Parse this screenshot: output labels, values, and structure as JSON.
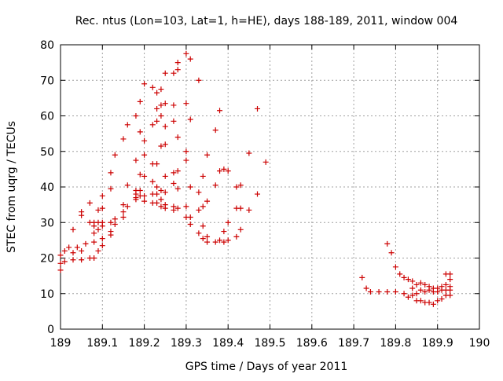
{
  "chart_data": {
    "type": "scatter",
    "title": "Rec. ntus (Lon=103, Lat=1, h=HE), days 188-189, 2011, window 004",
    "xlabel": "GPS time / Days of year 2011",
    "ylabel": "STEC from uqrg / TECUs",
    "xlim": [
      189,
      190
    ],
    "ylim": [
      0,
      80
    ],
    "xticks": [
      "189",
      "189.1",
      "189.2",
      "189.3",
      "189.4",
      "189.5",
      "189.6",
      "189.7",
      "189.8",
      "189.9",
      "190"
    ],
    "yticks": [
      "0",
      "10",
      "20",
      "30",
      "40",
      "50",
      "60",
      "70",
      "80"
    ],
    "grid": true,
    "marker": "+",
    "color": "#cc0000",
    "points": [
      [
        189.0,
        20.8
      ],
      [
        189.0,
        18.5
      ],
      [
        189.0,
        16.6
      ],
      [
        189.01,
        19
      ],
      [
        189.01,
        22
      ],
      [
        189.02,
        23
      ],
      [
        189.03,
        21.5
      ],
      [
        189.03,
        28
      ],
      [
        189.03,
        19.5
      ],
      [
        189.04,
        23
      ],
      [
        189.05,
        33
      ],
      [
        189.05,
        32
      ],
      [
        189.05,
        22
      ],
      [
        189.05,
        19.5
      ],
      [
        189.06,
        24
      ],
      [
        189.07,
        35.5
      ],
      [
        189.07,
        30
      ],
      [
        189.07,
        20
      ],
      [
        189.08,
        30
      ],
      [
        189.08,
        29
      ],
      [
        189.08,
        27
      ],
      [
        189.08,
        24.5
      ],
      [
        189.08,
        20
      ],
      [
        189.09,
        33.5
      ],
      [
        189.09,
        30
      ],
      [
        189.09,
        28
      ],
      [
        189.09,
        22
      ],
      [
        189.1,
        37.5
      ],
      [
        189.1,
        34
      ],
      [
        189.1,
        30
      ],
      [
        189.1,
        29
      ],
      [
        189.1,
        25.5
      ],
      [
        189.1,
        23.5
      ],
      [
        189.12,
        44
      ],
      [
        189.12,
        39.5
      ],
      [
        189.12,
        30
      ],
      [
        189.12,
        27.5
      ],
      [
        189.12,
        26.5
      ],
      [
        189.13,
        49
      ],
      [
        189.13,
        31
      ],
      [
        189.13,
        29.5
      ],
      [
        189.15,
        53.5
      ],
      [
        189.15,
        35
      ],
      [
        189.15,
        33
      ],
      [
        189.15,
        31.5
      ],
      [
        189.16,
        57.5
      ],
      [
        189.16,
        40.5
      ],
      [
        189.16,
        34.5
      ],
      [
        189.18,
        60
      ],
      [
        189.18,
        47.5
      ],
      [
        189.18,
        39
      ],
      [
        189.18,
        38
      ],
      [
        189.18,
        37
      ],
      [
        189.18,
        36.5
      ],
      [
        189.19,
        64
      ],
      [
        189.19,
        55.5
      ],
      [
        189.19,
        43.5
      ],
      [
        189.19,
        39
      ],
      [
        189.19,
        37.5
      ],
      [
        189.2,
        69
      ],
      [
        189.2,
        53
      ],
      [
        189.2,
        49
      ],
      [
        189.2,
        43
      ],
      [
        189.2,
        37.5
      ],
      [
        189.2,
        36
      ],
      [
        189.22,
        68
      ],
      [
        189.22,
        57.5
      ],
      [
        189.22,
        46.5
      ],
      [
        189.22,
        41.5
      ],
      [
        189.22,
        38
      ],
      [
        189.22,
        35.5
      ],
      [
        189.23,
        66.5
      ],
      [
        189.23,
        62
      ],
      [
        189.23,
        58.5
      ],
      [
        189.23,
        46.5
      ],
      [
        189.23,
        40
      ],
      [
        189.23,
        38
      ],
      [
        189.23,
        35.5
      ],
      [
        189.24,
        67.5
      ],
      [
        189.24,
        63
      ],
      [
        189.24,
        60
      ],
      [
        189.24,
        51.5
      ],
      [
        189.24,
        39
      ],
      [
        189.24,
        36.5
      ],
      [
        189.24,
        34.5
      ],
      [
        189.25,
        72
      ],
      [
        189.25,
        63.5
      ],
      [
        189.25,
        57
      ],
      [
        189.25,
        52
      ],
      [
        189.25,
        43
      ],
      [
        189.25,
        38.5
      ],
      [
        189.25,
        35
      ],
      [
        189.25,
        34
      ],
      [
        189.27,
        72
      ],
      [
        189.27,
        63
      ],
      [
        189.27,
        58.5
      ],
      [
        189.27,
        44
      ],
      [
        189.27,
        41
      ],
      [
        189.27,
        34.5
      ],
      [
        189.27,
        33.5
      ],
      [
        189.28,
        75
      ],
      [
        189.28,
        73
      ],
      [
        189.28,
        54
      ],
      [
        189.28,
        44.5
      ],
      [
        189.28,
        39.5
      ],
      [
        189.28,
        34
      ],
      [
        189.3,
        77.5
      ],
      [
        189.3,
        63.5
      ],
      [
        189.3,
        50
      ],
      [
        189.3,
        47.5
      ],
      [
        189.3,
        34.5
      ],
      [
        189.3,
        31.5
      ],
      [
        189.31,
        76
      ],
      [
        189.31,
        59
      ],
      [
        189.31,
        40
      ],
      [
        189.31,
        31.5
      ],
      [
        189.31,
        29.5
      ],
      [
        189.33,
        70
      ],
      [
        189.33,
        38.5
      ],
      [
        189.33,
        33.5
      ],
      [
        189.33,
        27
      ],
      [
        189.34,
        43
      ],
      [
        189.34,
        34.5
      ],
      [
        189.34,
        29
      ],
      [
        189.34,
        25.5
      ],
      [
        189.35,
        49
      ],
      [
        189.35,
        36
      ],
      [
        189.35,
        26
      ],
      [
        189.35,
        24.5
      ],
      [
        189.37,
        56
      ],
      [
        189.37,
        40.5
      ],
      [
        189.37,
        24.5
      ],
      [
        189.38,
        61.5
      ],
      [
        189.38,
        44.5
      ],
      [
        189.38,
        25
      ],
      [
        189.39,
        45
      ],
      [
        189.39,
        27.5
      ],
      [
        189.39,
        24.5
      ],
      [
        189.4,
        44.5
      ],
      [
        189.4,
        30
      ],
      [
        189.4,
        25
      ],
      [
        189.42,
        40
      ],
      [
        189.42,
        34
      ],
      [
        189.42,
        26
      ],
      [
        189.43,
        40.5
      ],
      [
        189.43,
        34
      ],
      [
        189.43,
        28
      ],
      [
        189.45,
        49.5
      ],
      [
        189.45,
        33.5
      ],
      [
        189.47,
        62
      ],
      [
        189.47,
        38
      ],
      [
        189.49,
        47
      ],
      [
        189.72,
        14.5
      ],
      [
        189.73,
        11.5
      ],
      [
        189.74,
        10.5
      ],
      [
        189.76,
        10.5
      ],
      [
        189.78,
        24
      ],
      [
        189.78,
        10.5
      ],
      [
        189.79,
        21.5
      ],
      [
        189.8,
        17.5
      ],
      [
        189.8,
        10.5
      ],
      [
        189.81,
        15.5
      ],
      [
        189.82,
        14.5
      ],
      [
        189.82,
        10
      ],
      [
        189.83,
        14
      ],
      [
        189.83,
        9
      ],
      [
        189.84,
        13.5
      ],
      [
        189.84,
        11.5
      ],
      [
        189.84,
        9.5
      ],
      [
        189.85,
        12.5
      ],
      [
        189.85,
        10
      ],
      [
        189.85,
        8
      ],
      [
        189.86,
        13
      ],
      [
        189.86,
        11
      ],
      [
        189.86,
        8
      ],
      [
        189.87,
        12.5
      ],
      [
        189.87,
        10.5
      ],
      [
        189.87,
        7.5
      ],
      [
        189.88,
        12
      ],
      [
        189.88,
        11
      ],
      [
        189.88,
        7.5
      ],
      [
        189.89,
        11.5
      ],
      [
        189.89,
        10.5
      ],
      [
        189.89,
        7
      ],
      [
        189.9,
        11.5
      ],
      [
        189.9,
        10.5
      ],
      [
        189.9,
        8
      ],
      [
        189.91,
        12
      ],
      [
        189.91,
        11
      ],
      [
        189.91,
        8.5
      ],
      [
        189.92,
        15.5
      ],
      [
        189.92,
        12.5
      ],
      [
        189.92,
        11
      ],
      [
        189.92,
        9.5
      ],
      [
        189.93,
        15.5
      ],
      [
        189.93,
        14
      ],
      [
        189.93,
        12
      ],
      [
        189.93,
        11
      ],
      [
        189.93,
        9.5
      ]
    ]
  }
}
